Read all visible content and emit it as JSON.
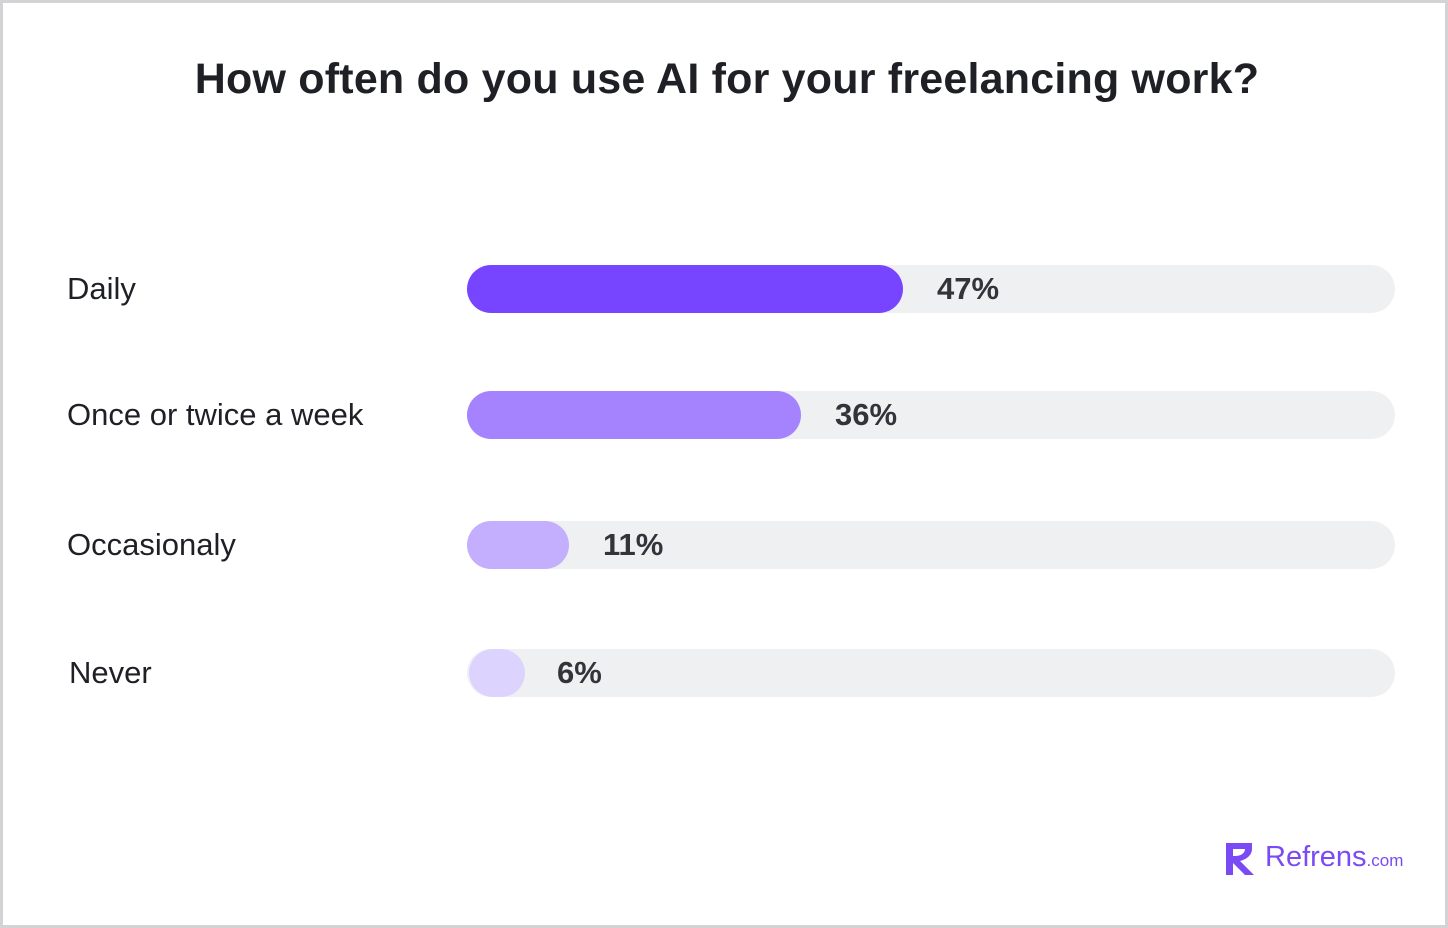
{
  "chart_data": {
    "type": "bar",
    "orientation": "horizontal",
    "title": "How often do you use AI for your freelancing work?",
    "categories": [
      "Daily",
      "Once or twice a week",
      "Occasionaly",
      "Never"
    ],
    "values": [
      47,
      36,
      11,
      6
    ],
    "value_labels": [
      "47%",
      "36%",
      "11%",
      "6%"
    ],
    "unit": "%",
    "xlim": [
      0,
      100
    ],
    "colors": [
      "#7745ff",
      "#a583ff",
      "#c4afff",
      "#ddd3ff"
    ],
    "track_color": "#eff0f2",
    "grid": false,
    "legend": "none"
  },
  "branding": {
    "logo_name": "Refrens",
    "logo_suffix": ".com",
    "logo_icon": "refrens-r-icon",
    "logo_color": "#7a4af5"
  }
}
